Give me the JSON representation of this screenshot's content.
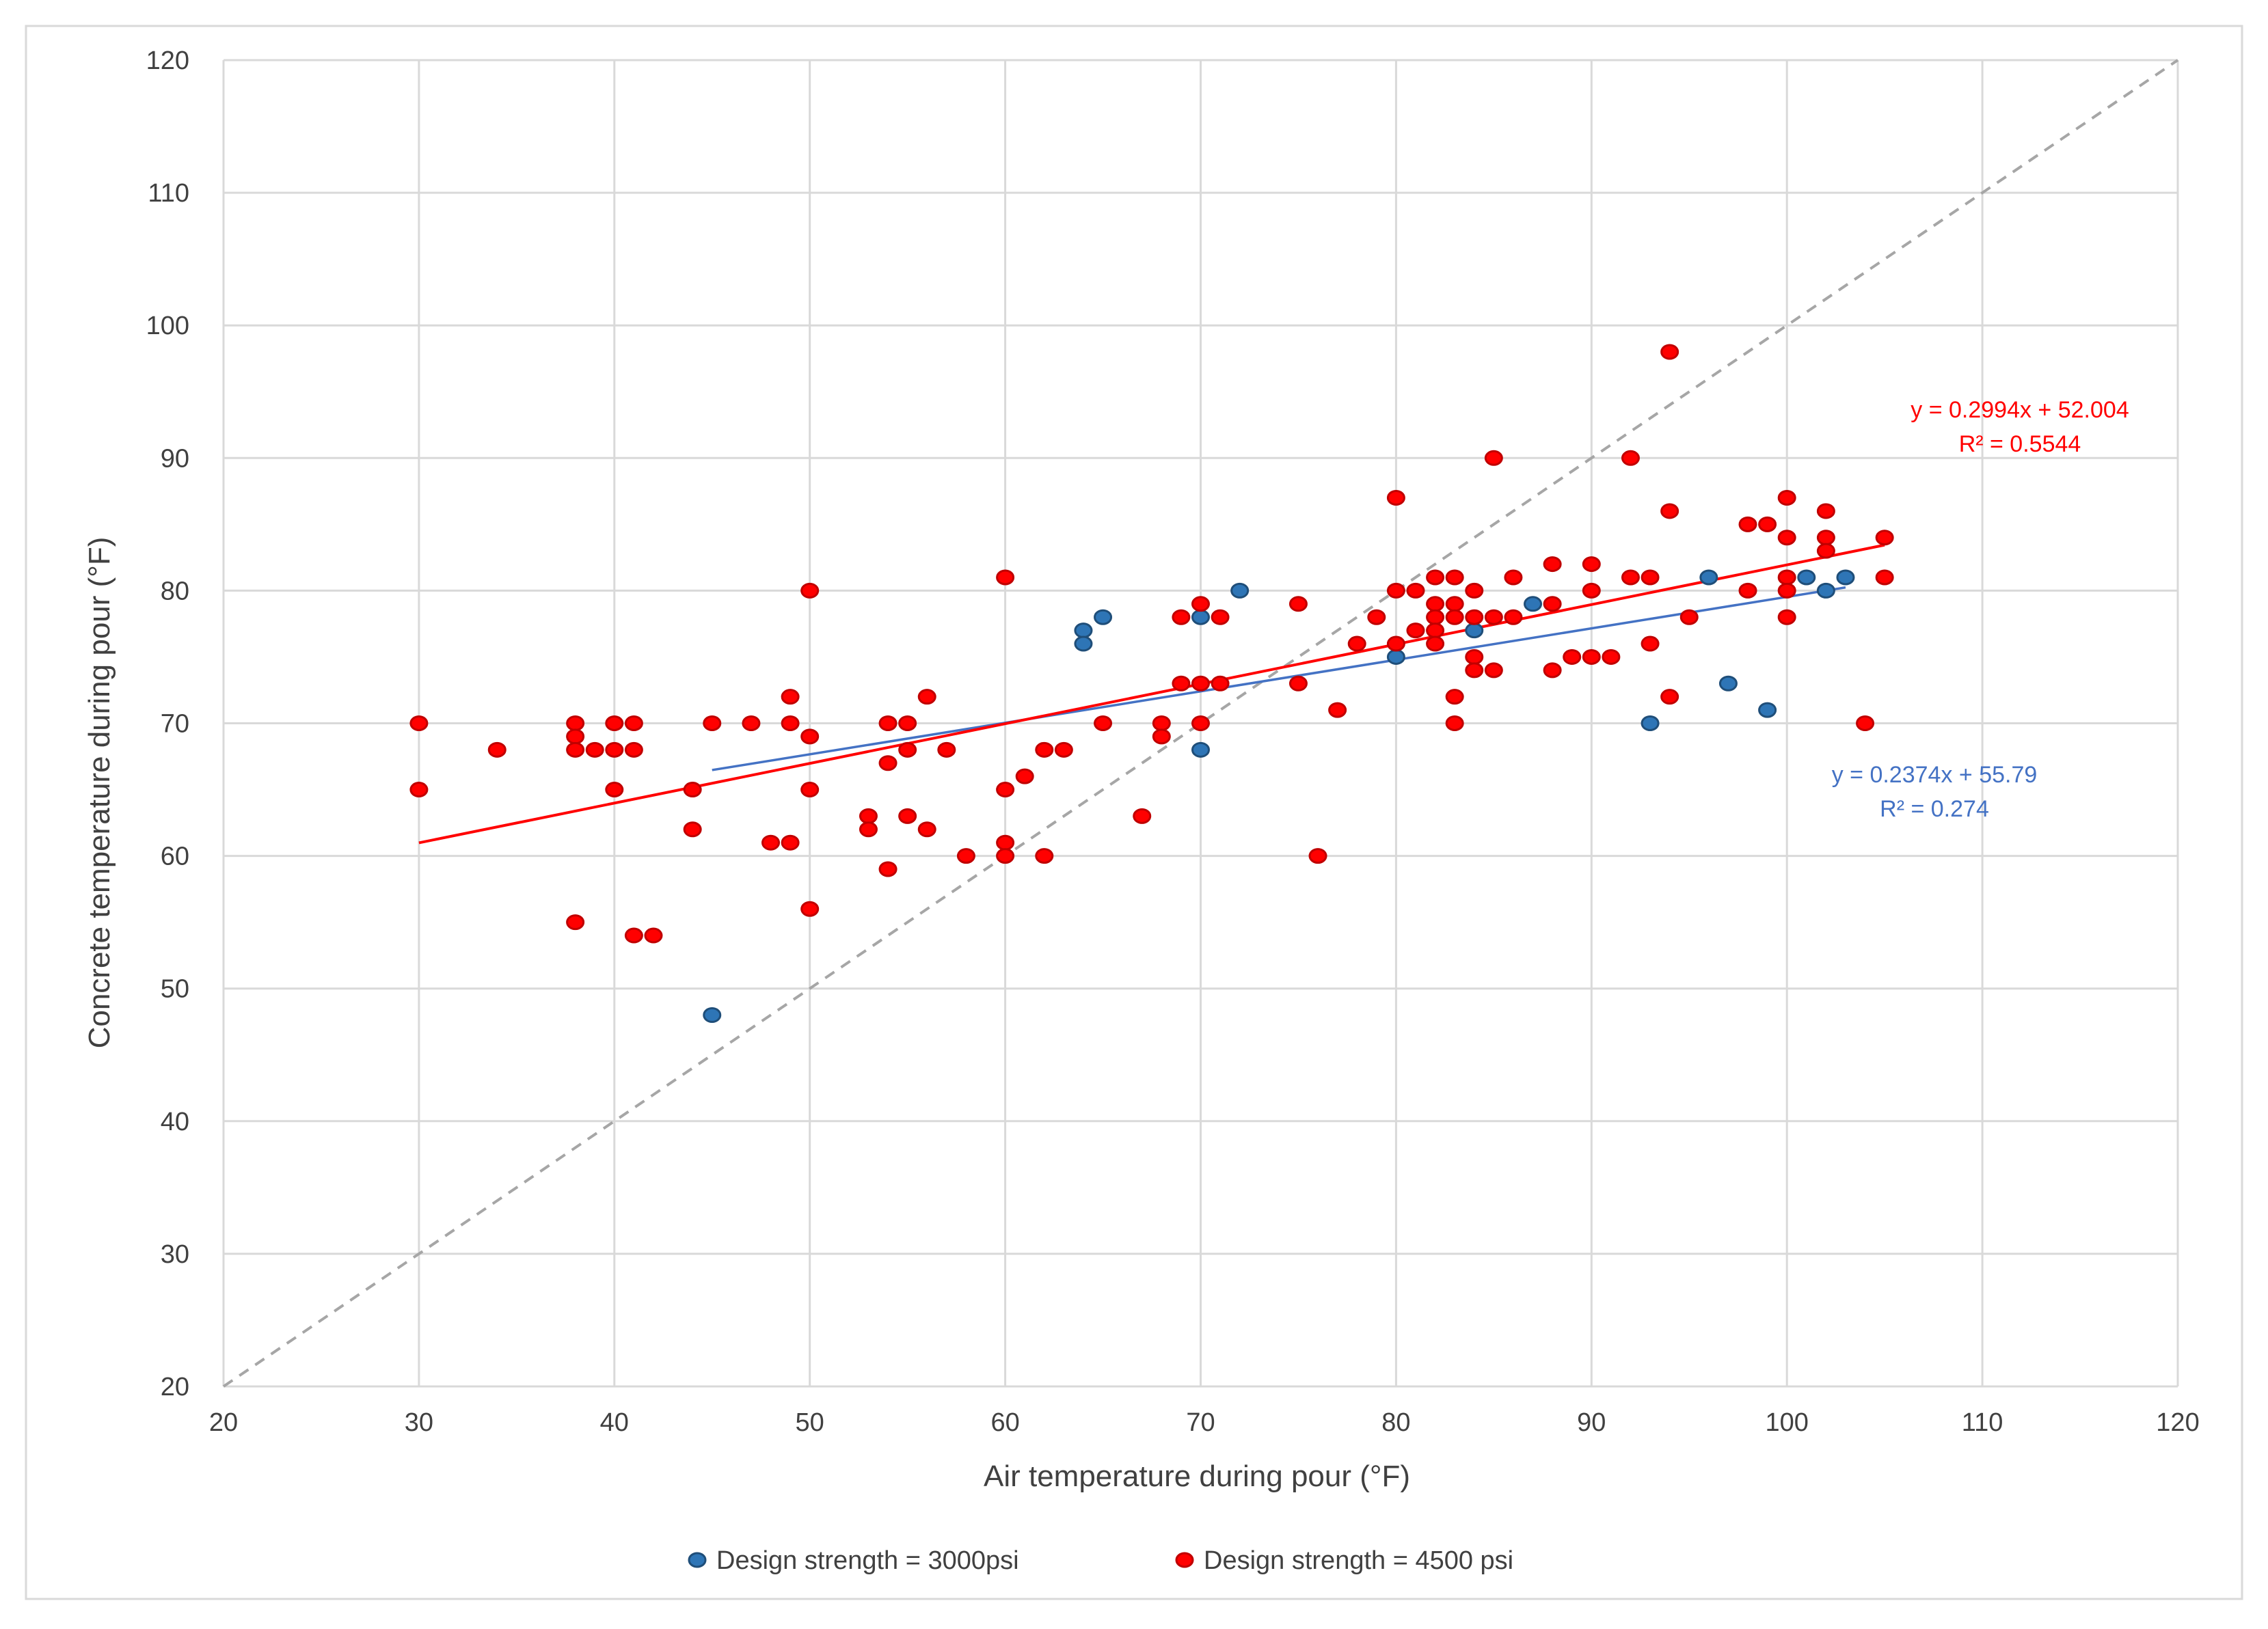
{
  "chart_data": {
    "type": "scatter",
    "title": "",
    "xlabel": "Air temperature during pour (°F)",
    "ylabel": "Concrete temperature during pour (°F)",
    "xlim": [
      20,
      120
    ],
    "ylim": [
      20,
      120
    ],
    "xticks": [
      "20",
      "30",
      "40",
      "50",
      "60",
      "70",
      "80",
      "90",
      "100",
      "110",
      "120"
    ],
    "yticks": [
      "20",
      "30",
      "40",
      "50",
      "60",
      "70",
      "80",
      "90",
      "100",
      "110",
      "120"
    ],
    "grid": true,
    "legend_position": "bottom",
    "series": [
      {
        "name": "Design strength = 3000psi",
        "color": "#2e75b6",
        "points": [
          [
            45,
            48
          ],
          [
            64,
            77
          ],
          [
            64,
            76
          ],
          [
            65,
            78
          ],
          [
            70,
            78
          ],
          [
            70,
            68
          ],
          [
            72,
            80
          ],
          [
            80,
            75
          ],
          [
            84,
            77
          ],
          [
            87,
            79
          ],
          [
            93,
            70
          ],
          [
            96,
            81
          ],
          [
            97,
            73
          ],
          [
            99,
            71
          ],
          [
            101,
            81
          ],
          [
            102,
            80
          ],
          [
            103,
            81
          ]
        ],
        "trendline": {
          "slope": 0.2374,
          "intercept": 55.79,
          "x_range": [
            45,
            103
          ],
          "color": "#4472c4",
          "equation": "y = 0.2374x + 55.79",
          "r2": "R² = 0.274"
        }
      },
      {
        "name": "Design strength = 4500 psi",
        "color": "#ff0000",
        "points": [
          [
            30,
            70
          ],
          [
            30,
            65
          ],
          [
            34,
            68
          ],
          [
            38,
            70
          ],
          [
            38,
            69
          ],
          [
            38,
            68
          ],
          [
            38,
            55
          ],
          [
            39,
            68
          ],
          [
            40,
            70
          ],
          [
            40,
            68
          ],
          [
            40,
            65
          ],
          [
            41,
            70
          ],
          [
            41,
            68
          ],
          [
            41,
            54
          ],
          [
            42,
            54
          ],
          [
            44,
            65
          ],
          [
            44,
            62
          ],
          [
            45,
            70
          ],
          [
            47,
            70
          ],
          [
            48,
            61
          ],
          [
            49,
            72
          ],
          [
            49,
            70
          ],
          [
            49,
            61
          ],
          [
            50,
            80
          ],
          [
            50,
            69
          ],
          [
            50,
            65
          ],
          [
            50,
            56
          ],
          [
            53,
            63
          ],
          [
            53,
            62
          ],
          [
            54,
            70
          ],
          [
            54,
            67
          ],
          [
            54,
            59
          ],
          [
            55,
            70
          ],
          [
            55,
            68
          ],
          [
            55,
            63
          ],
          [
            56,
            72
          ],
          [
            56,
            62
          ],
          [
            57,
            68
          ],
          [
            58,
            60
          ],
          [
            60,
            81
          ],
          [
            60,
            65
          ],
          [
            60,
            61
          ],
          [
            60,
            60
          ],
          [
            61,
            66
          ],
          [
            62,
            68
          ],
          [
            62,
            60
          ],
          [
            63,
            68
          ],
          [
            65,
            70
          ],
          [
            67,
            63
          ],
          [
            68,
            70
          ],
          [
            68,
            69
          ],
          [
            69,
            78
          ],
          [
            69,
            73
          ],
          [
            70,
            79
          ],
          [
            70,
            73
          ],
          [
            70,
            70
          ],
          [
            71,
            78
          ],
          [
            71,
            73
          ],
          [
            75,
            79
          ],
          [
            75,
            73
          ],
          [
            76,
            60
          ],
          [
            77,
            71
          ],
          [
            78,
            76
          ],
          [
            79,
            78
          ],
          [
            80,
            87
          ],
          [
            80,
            80
          ],
          [
            80,
            76
          ],
          [
            81,
            80
          ],
          [
            81,
            77
          ],
          [
            82,
            81
          ],
          [
            82,
            79
          ],
          [
            82,
            78
          ],
          [
            82,
            77
          ],
          [
            82,
            76
          ],
          [
            83,
            81
          ],
          [
            83,
            79
          ],
          [
            83,
            78
          ],
          [
            83,
            72
          ],
          [
            83,
            70
          ],
          [
            84,
            80
          ],
          [
            84,
            78
          ],
          [
            84,
            75
          ],
          [
            84,
            74
          ],
          [
            85,
            90
          ],
          [
            85,
            78
          ],
          [
            85,
            74
          ],
          [
            86,
            81
          ],
          [
            86,
            78
          ],
          [
            88,
            82
          ],
          [
            88,
            79
          ],
          [
            88,
            74
          ],
          [
            89,
            75
          ],
          [
            90,
            82
          ],
          [
            90,
            80
          ],
          [
            90,
            75
          ],
          [
            91,
            75
          ],
          [
            92,
            90
          ],
          [
            92,
            81
          ],
          [
            93,
            81
          ],
          [
            93,
            76
          ],
          [
            94,
            98
          ],
          [
            94,
            86
          ],
          [
            94,
            72
          ],
          [
            95,
            78
          ],
          [
            98,
            85
          ],
          [
            98,
            80
          ],
          [
            99,
            85
          ],
          [
            100,
            87
          ],
          [
            100,
            84
          ],
          [
            100,
            81
          ],
          [
            100,
            80
          ],
          [
            100,
            78
          ],
          [
            102,
            86
          ],
          [
            102,
            84
          ],
          [
            102,
            83
          ],
          [
            104,
            70
          ],
          [
            105,
            84
          ],
          [
            105,
            81
          ]
        ],
        "trendline": {
          "slope": 0.2994,
          "intercept": 52.004,
          "x_range": [
            30,
            105
          ],
          "color": "#ff0000",
          "equation": "y = 0.2994x + 52.004",
          "r2": "R² = 0.5544"
        }
      }
    ],
    "reference_line": {
      "type": "y = x",
      "style": "dashed",
      "color": "#a6a6a6"
    }
  }
}
